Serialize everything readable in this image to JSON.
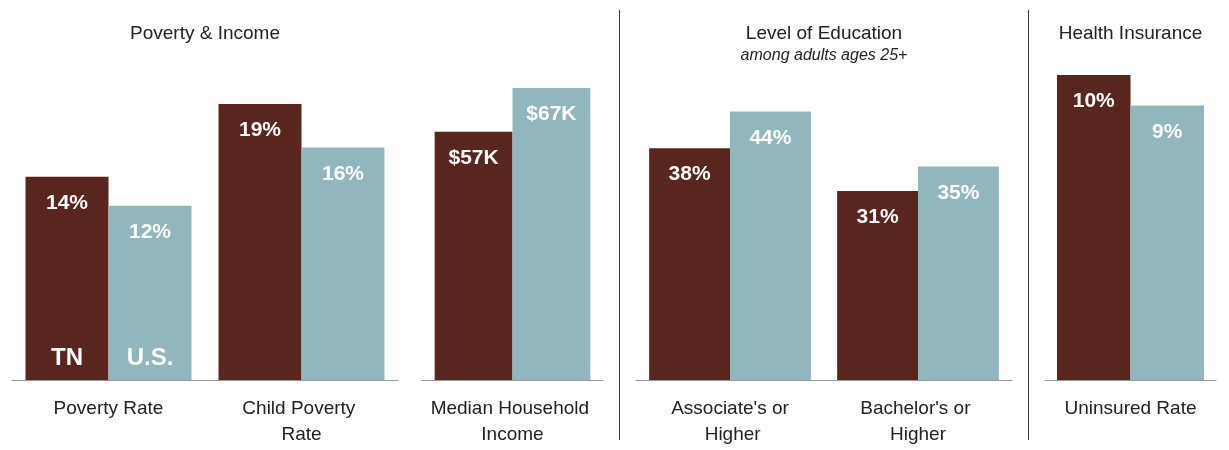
{
  "chart_data": [
    {
      "type": "bar",
      "title": "Poverty & Income",
      "categories": [
        "Poverty Rate",
        "Child Poverty Rate"
      ],
      "series": [
        {
          "name": "TN",
          "color": "#58261f",
          "values": [
            14,
            19
          ],
          "value_labels": [
            "14%",
            "19%"
          ]
        },
        {
          "name": "U.S.",
          "color": "#91b6bd",
          "values": [
            12,
            16
          ],
          "value_labels": [
            "12%",
            "16%"
          ]
        }
      ]
    },
    {
      "type": "bar",
      "categories": [
        "Median Household Income"
      ],
      "series": [
        {
          "color": "#58261f",
          "values": [
            57
          ],
          "value_labels": [
            "$57K"
          ]
        },
        {
          "color": "#91b6bd",
          "values": [
            67
          ],
          "value_labels": [
            "$67K"
          ]
        }
      ]
    },
    {
      "type": "bar",
      "title": "Level of Education",
      "subtitle": "among adults ages 25+",
      "categories": [
        "Associate's or Higher",
        "Bachelor's or Higher"
      ],
      "series": [
        {
          "color": "#58261f",
          "values": [
            38,
            31
          ],
          "value_labels": [
            "38%",
            "31%"
          ]
        },
        {
          "color": "#91b6bd",
          "values": [
            44,
            35
          ],
          "value_labels": [
            "44%",
            "35%"
          ]
        }
      ]
    },
    {
      "type": "bar",
      "title": "Health Insurance",
      "categories": [
        "Uninsured Rate"
      ],
      "series": [
        {
          "color": "#58261f",
          "values": [
            10
          ],
          "value_labels": [
            "10%"
          ]
        },
        {
          "color": "#91b6bd",
          "values": [
            9
          ],
          "value_labels": [
            "9%"
          ]
        }
      ]
    }
  ]
}
